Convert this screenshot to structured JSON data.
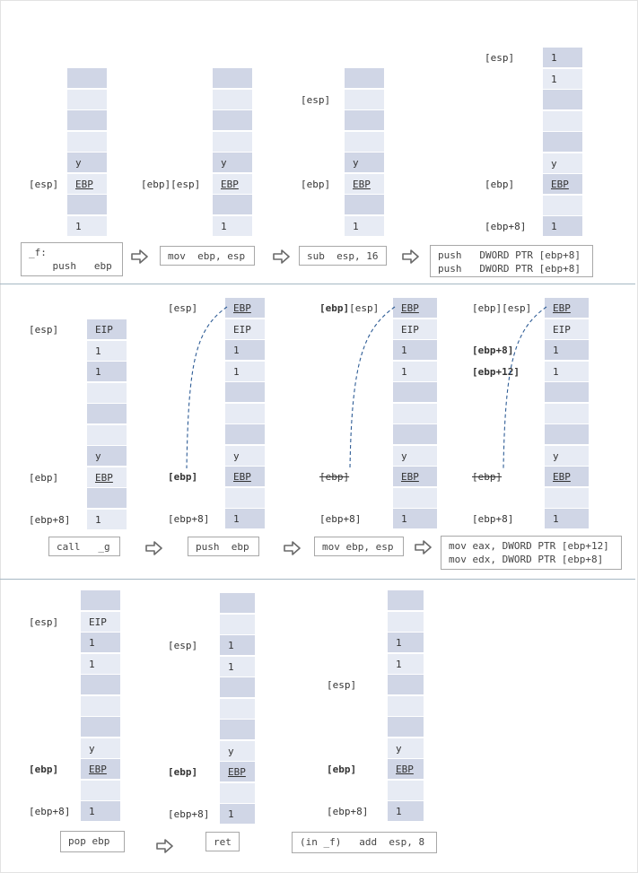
{
  "diagram": {
    "rows": [
      {
        "steps": [
          {
            "cells": [
              "",
              "",
              "",
              "",
              "y",
              "EBP",
              "",
              "1"
            ],
            "labels": [
              {
                "text": "[esp]",
                "cell": 5
              }
            ],
            "code": "_f:\n    push   ebp"
          },
          {
            "cells": [
              "",
              "",
              "",
              "",
              "y",
              "EBP",
              "",
              "1"
            ],
            "labels": [
              {
                "text": "[ebp][esp]",
                "cell": 5
              }
            ],
            "code": "mov  ebp, esp"
          },
          {
            "cells": [
              "",
              "",
              "",
              "",
              "y",
              "EBP",
              "",
              "1"
            ],
            "labels": [
              {
                "text": "[esp]",
                "cell": 1
              },
              {
                "text": "[ebp]",
                "cell": 5
              }
            ],
            "code": "sub  esp, 16"
          },
          {
            "cells": [
              "1",
              "1",
              "",
              "",
              "",
              "y",
              "EBP",
              "",
              "1"
            ],
            "labels": [
              {
                "text": "[esp]",
                "cell": 0
              },
              {
                "text": "[ebp]",
                "cell": 6
              },
              {
                "text": "[ebp+8]",
                "cell": 8
              }
            ],
            "code": "push   DWORD PTR [ebp+8]\npush   DWORD PTR [ebp+8]"
          }
        ]
      },
      {
        "steps": [
          {
            "cells": [
              "EIP",
              "1",
              "1",
              "",
              "",
              "",
              "y",
              "EBP",
              "",
              "1"
            ],
            "labels": [
              {
                "text": "[esp]",
                "cell": 0
              },
              {
                "text": "[ebp]",
                "cell": 7
              },
              {
                "text": "[ebp+8]",
                "cell": 9
              }
            ],
            "code": "call   _g"
          },
          {
            "cells": [
              "EBP",
              "EIP",
              "1",
              "1",
              "",
              "",
              "",
              "y",
              "EBP",
              "",
              "1"
            ],
            "labels": [
              {
                "text": "[esp]",
                "cell": 0
              },
              {
                "text": "[ebp]",
                "cell": 8,
                "bold": true
              },
              {
                "text": "[ebp+8]",
                "cell": 10
              }
            ],
            "code": "push  ebp"
          },
          {
            "cells": [
              "EBP",
              "EIP",
              "1",
              "1",
              "",
              "",
              "",
              "y",
              "EBP",
              "",
              "1"
            ],
            "labels": [
              {
                "text": "[ebp][esp]",
                "cell": 0,
                "boldPrefix": "[ebp]"
              },
              {
                "text": "[ebp]",
                "cell": 8,
                "strike": true
              },
              {
                "text": "[ebp+8]",
                "cell": 10
              }
            ],
            "code": "mov ebp, esp"
          },
          {
            "cells": [
              "EBP",
              "EIP",
              "1",
              "1",
              "",
              "",
              "",
              "y",
              "EBP",
              "",
              "1"
            ],
            "labels": [
              {
                "text": "[ebp][esp]",
                "cell": 0
              },
              {
                "text": "[ebp+8]",
                "cell": 2,
                "bold": true
              },
              {
                "text": "[ebp+12]",
                "cell": 3,
                "bold": true
              },
              {
                "text": "[ebp]",
                "cell": 8,
                "strike": true
              },
              {
                "text": "[ebp+8]",
                "cell": 10
              }
            ],
            "code": "mov eax, DWORD PTR [ebp+12]\nmov edx, DWORD PTR [ebp+8]"
          }
        ]
      },
      {
        "steps": [
          {
            "cells": [
              "",
              "EIP",
              "1",
              "1",
              "",
              "",
              "",
              "y",
              "EBP",
              "",
              "1"
            ],
            "labels": [
              {
                "text": "[esp]",
                "cell": 1
              },
              {
                "text": "[ebp]",
                "cell": 8,
                "bold": true
              },
              {
                "text": "[ebp+8]",
                "cell": 10
              }
            ],
            "code": "pop ebp"
          },
          {
            "cells": [
              "",
              "",
              "1",
              "1",
              "",
              "",
              "",
              "y",
              "EBP",
              "",
              "1"
            ],
            "labels": [
              {
                "text": "[esp]",
                "cell": 2
              },
              {
                "text": "[ebp]",
                "cell": 8,
                "bold": true
              },
              {
                "text": "[ebp+8]",
                "cell": 10
              }
            ],
            "code": "ret"
          },
          {
            "cells": [
              "",
              "",
              "1",
              "1",
              "",
              "",
              "",
              "y",
              "EBP",
              "",
              "1"
            ],
            "labels": [
              {
                "text": "[esp]",
                "cell": 4
              },
              {
                "text": "[ebp]",
                "cell": 8,
                "bold": true
              },
              {
                "text": "[ebp+8]",
                "cell": 10
              }
            ],
            "code": "(in _f)   add  esp, 8"
          }
        ]
      }
    ]
  }
}
